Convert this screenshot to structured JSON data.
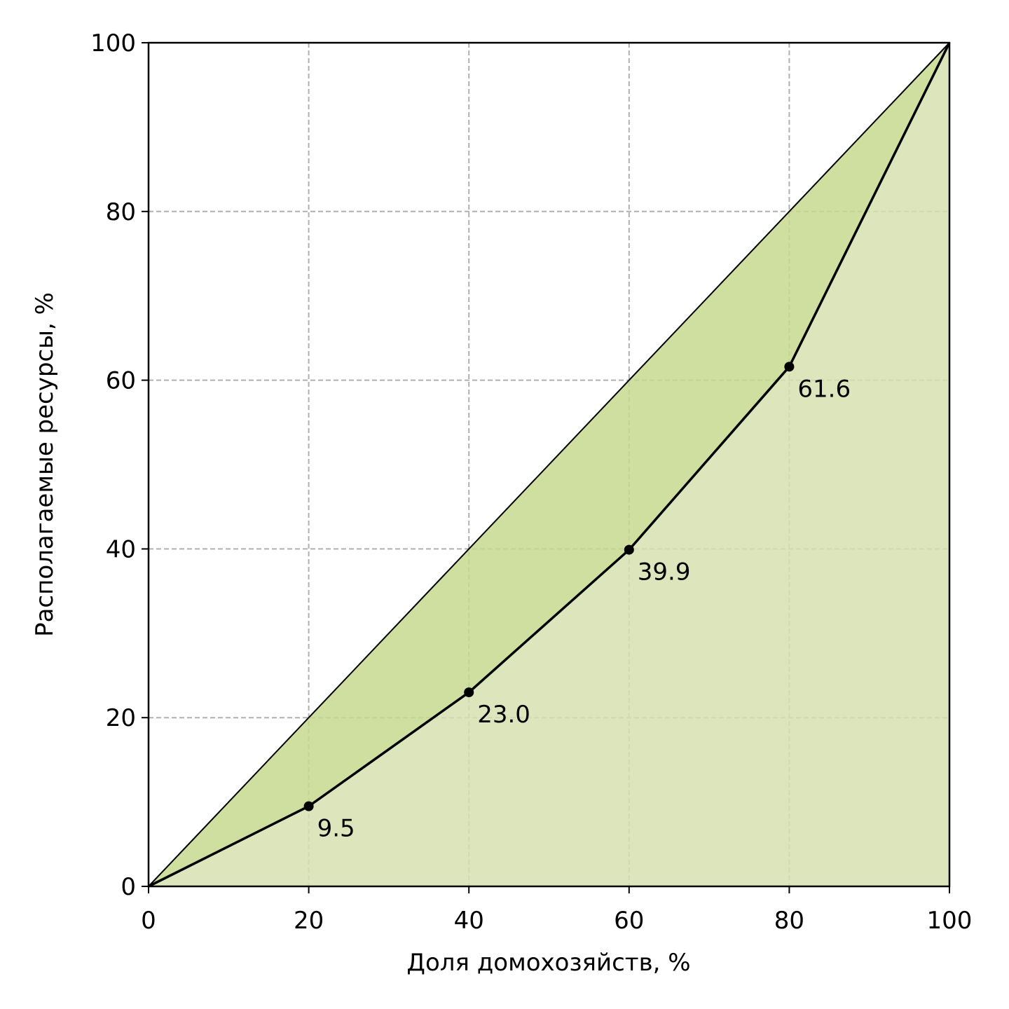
{
  "chart_data": {
    "type": "lorenz",
    "xlabel": "Доля домохозяйств, %",
    "ylabel": "Располагаемые ресурсы, %",
    "x": [
      0,
      20,
      40,
      60,
      80,
      100
    ],
    "series": [
      {
        "values": [
          0,
          20,
          40,
          60,
          80,
          100
        ],
        "color": "#000000",
        "fill": "#c5d98f"
      },
      {
        "values": [
          0,
          9.5,
          23.0,
          39.9,
          61.6,
          100
        ],
        "color": "#000000",
        "fill": "#d7e0b0",
        "value_labels": [
          null,
          "9.5",
          "23.0",
          "39.9",
          "61.6",
          null
        ]
      }
    ],
    "xlim": [
      0,
      100
    ],
    "ylim": [
      0,
      100
    ],
    "xticks": [
      0,
      20,
      40,
      60,
      80,
      100
    ],
    "yticks": [
      0,
      20,
      40,
      60,
      80,
      100
    ],
    "grid": true
  }
}
